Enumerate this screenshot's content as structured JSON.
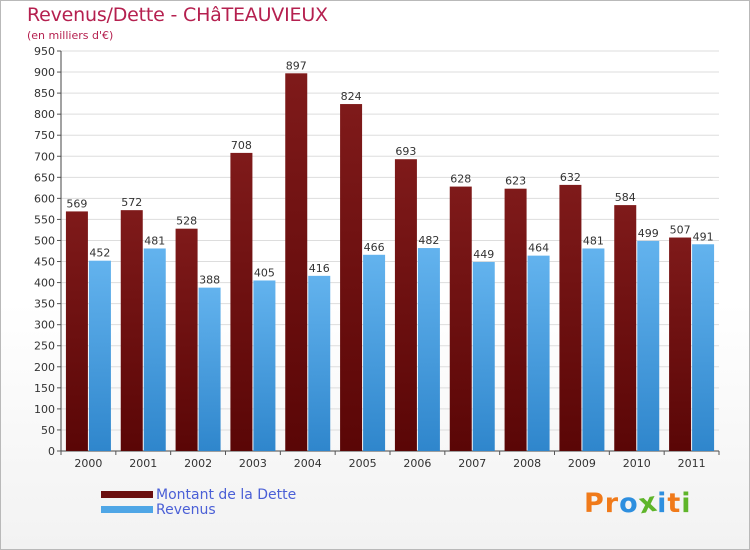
{
  "title": "Revenus/Dette - CHâTEAUVIEUX",
  "subtitle": "(en milliers d'€)",
  "logo": {
    "letters": [
      "P",
      "r",
      "o",
      "x",
      "i",
      "t",
      "i"
    ]
  },
  "colors": {
    "dette": "#6b0f0f",
    "dette_top": "#7f1a1a",
    "revenus": "#4fa6e6",
    "revenus_top": "#63b3ee",
    "title": "#b5204f",
    "legend_text": "#4a5fd6",
    "logo": [
      "#f07a1a",
      "#f07a1a",
      "#2e8fdf",
      "#5fb52a",
      "#2e8fdf",
      "#f07a1a",
      "#5fb52a"
    ]
  },
  "legend": {
    "dette_label": "Montant de la Dette",
    "revenus_label": "Revenus"
  },
  "chart_data": {
    "type": "bar",
    "title": "Revenus/Dette - CHâTEAUVIEUX",
    "ylabel": "(en milliers d'€)",
    "xlabel": "",
    "ylim": [
      0,
      950
    ],
    "ytick_step": 50,
    "grid": true,
    "categories": [
      "2000",
      "2001",
      "2002",
      "2003",
      "2004",
      "2005",
      "2006",
      "2007",
      "2008",
      "2009",
      "2010",
      "2011"
    ],
    "series": [
      {
        "name": "Montant de la Dette",
        "values": [
          569,
          572,
          528,
          708,
          897,
          824,
          693,
          628,
          623,
          632,
          584,
          507
        ]
      },
      {
        "name": "Revenus",
        "values": [
          452,
          481,
          388,
          405,
          416,
          466,
          482,
          449,
          464,
          481,
          499,
          491
        ]
      }
    ]
  }
}
